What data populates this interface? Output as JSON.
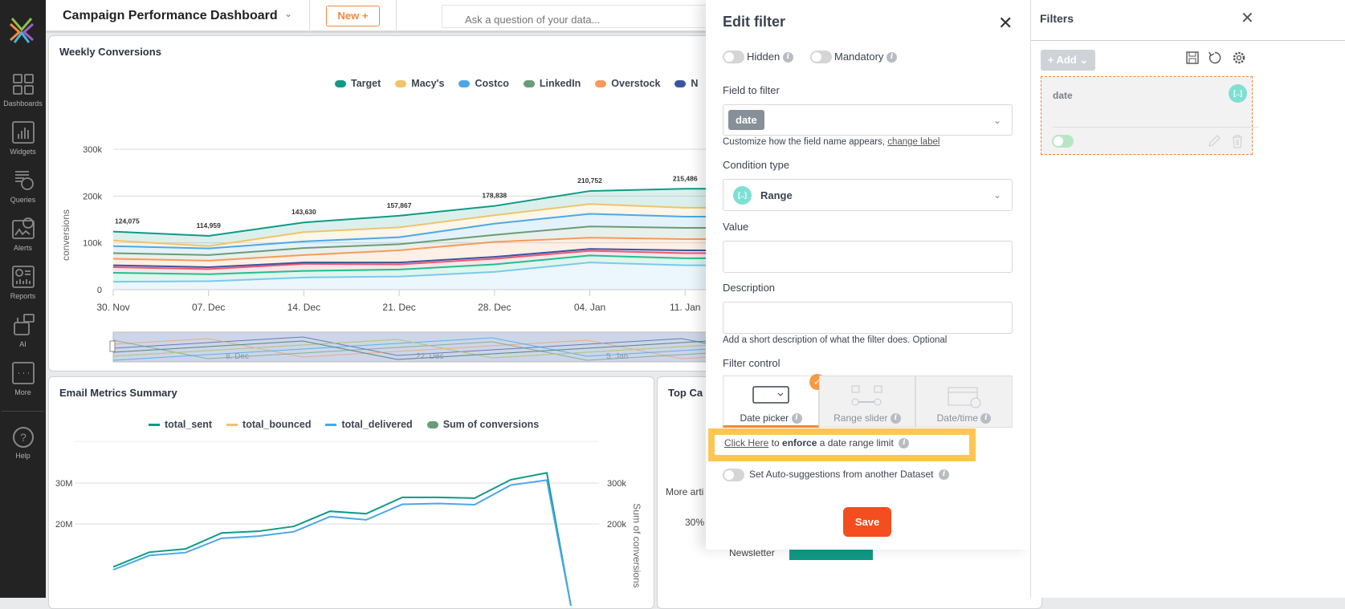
{
  "sidebar": {
    "items": [
      {
        "label": "Dashboards",
        "icon": "dashboards-icon"
      },
      {
        "label": "Widgets",
        "icon": "widgets-icon"
      },
      {
        "label": "Queries",
        "icon": "queries-icon"
      },
      {
        "label": "Alerts",
        "icon": "alerts-icon"
      },
      {
        "label": "Reports",
        "icon": "reports-icon"
      },
      {
        "label": "AI",
        "icon": "ai-icon"
      },
      {
        "label": "More",
        "icon": "more-icon"
      }
    ],
    "help": "Help"
  },
  "header": {
    "title": "Campaign Performance Dashboard",
    "new_label": "New +",
    "search_placeholder": "Ask a question of your data..."
  },
  "weekly": {
    "title": "Weekly Conversions",
    "legend": [
      "Target",
      "Macy's",
      "Costco",
      "LinkedIn",
      "Overstock",
      "N"
    ],
    "navigator_labels": [
      "8. Dec",
      "22. Dec",
      "5. Jan"
    ]
  },
  "email": {
    "title": "Email Metrics Summary",
    "legend": [
      "total_sent",
      "total_bounced",
      "total_delivered",
      "Sum of conversions"
    ]
  },
  "topcard": {
    "title": "Top Ca",
    "labels": [
      "More arti",
      "30%",
      "Newsletter"
    ]
  },
  "chart_data": [
    {
      "type": "area",
      "title": "Weekly Conversions",
      "ylabel": "conversions",
      "stacked": true,
      "x": [
        "30. Nov",
        "07. Dec",
        "14. Dec",
        "21. Dec",
        "28. Dec",
        "04. Jan",
        "11. Jan"
      ],
      "yticks": [
        "0",
        "100k",
        "200k",
        "300k"
      ],
      "ylim": [
        0,
        300000
      ],
      "totals_labels": [
        "124,075",
        "114,959",
        "143,630",
        "157,867",
        "178,838",
        "210,752",
        "215,486"
      ],
      "series": [
        {
          "name": "lightblue",
          "color": "#7cc8ef",
          "values": [
            17000,
            18000,
            26000,
            28000,
            38000,
            58000,
            52000
          ]
        },
        {
          "name": "green",
          "color": "#1fc08e",
          "values": [
            19000,
            15000,
            14000,
            15000,
            16000,
            15000,
            15000
          ]
        },
        {
          "name": "red",
          "color": "#ef5a6f",
          "values": [
            12000,
            11000,
            15000,
            11000,
            12000,
            10000,
            11000
          ]
        },
        {
          "name": "N",
          "color": "#3b55a0",
          "values": [
            4000,
            4000,
            3000,
            4000,
            4000,
            4000,
            6000
          ]
        },
        {
          "name": "Overstock",
          "color": "#f79a5a",
          "values": [
            14000,
            14000,
            16000,
            26000,
            32000,
            24000,
            24000
          ]
        },
        {
          "name": "LinkedIn",
          "color": "#6b9c78",
          "values": [
            12000,
            12000,
            15000,
            13000,
            15000,
            24000,
            24000
          ]
        },
        {
          "name": "Costco",
          "color": "#4aa8e8",
          "values": [
            15000,
            14000,
            14000,
            15000,
            24000,
            27000,
            24000
          ]
        },
        {
          "name": "Macy's",
          "color": "#efc46a",
          "values": [
            12000,
            5000,
            20000,
            21000,
            18000,
            21000,
            19000
          ]
        },
        {
          "name": "Target",
          "color": "#0f9a86",
          "values": [
            19075,
            21959,
            20630,
            24867,
            19838,
            27752,
            40486
          ]
        }
      ]
    },
    {
      "type": "line",
      "title": "Email Metrics Summary",
      "y2label": "Sum of conversions",
      "yticks": [
        "20M",
        "30M"
      ],
      "y2ticks": [
        "200k",
        "300k"
      ],
      "series": [
        {
          "name": "total_sent",
          "color": "#0f9a86",
          "values": [
            9.5,
            13.1,
            13.9,
            17.8,
            18.2,
            19.4,
            23.1,
            22.5,
            26.5,
            26.5,
            26.3,
            30.8,
            32.5,
            0
          ]
        },
        {
          "name": "total_delivered",
          "color": "#4aa8e8",
          "values": [
            8.8,
            12.3,
            13.0,
            16.5,
            17.0,
            18.1,
            21.8,
            21.0,
            24.8,
            25.0,
            24.7,
            29.5,
            30.7,
            0
          ]
        }
      ]
    }
  ],
  "modal": {
    "title": "Edit filter",
    "hidden": "Hidden",
    "mandatory": "Mandatory",
    "field_label": "Field to filter",
    "field_value": "date",
    "customize": "Customize how the field name appears, ",
    "change_label": "change label",
    "condition_label": "Condition type",
    "condition_value": "Range",
    "badge": "[..]",
    "value_label": "Value",
    "value": "",
    "description_label": "Description",
    "description": "",
    "description_hint": "Add a short description of what the filter does. Optional",
    "control_label": "Filter control",
    "controls": [
      "Date picker",
      "Range slider",
      "Date/time"
    ],
    "click_here": "Click Here",
    "enforce_pre": " to ",
    "enforce_bold": "enforce",
    "enforce_post": " a date range limit",
    "autosuggest": "Set Auto-suggestions from another Dataset",
    "save": "Save"
  },
  "filters": {
    "title": "Filters",
    "add": "+ Add",
    "card_name": "date",
    "badge": "[..]"
  }
}
